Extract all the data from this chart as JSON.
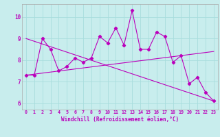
{
  "x": [
    0,
    1,
    2,
    3,
    4,
    5,
    6,
    7,
    8,
    9,
    10,
    11,
    12,
    13,
    14,
    15,
    16,
    17,
    18,
    19,
    20,
    21,
    22,
    23
  ],
  "y_main": [
    7.3,
    7.3,
    9.0,
    8.5,
    7.5,
    7.7,
    8.1,
    7.9,
    8.1,
    9.1,
    8.8,
    9.5,
    8.7,
    10.3,
    8.5,
    8.5,
    9.3,
    9.1,
    7.9,
    8.2,
    6.9,
    7.2,
    6.5,
    6.1
  ],
  "trend1_x": [
    0,
    23
  ],
  "trend1_y": [
    9.0,
    6.1
  ],
  "trend2_x": [
    0,
    23
  ],
  "trend2_y": [
    7.3,
    8.4
  ],
  "line_color": "#bb00bb",
  "bg_color": "#c8eded",
  "grid_color": "#a8dddd",
  "xlabel": "Windchill (Refroidissement éolien,°C)",
  "xlim": [
    -0.5,
    23.5
  ],
  "ylim": [
    5.7,
    10.6
  ],
  "yticks": [
    6,
    7,
    8,
    9,
    10
  ],
  "xticks": [
    0,
    1,
    2,
    3,
    4,
    5,
    6,
    7,
    8,
    9,
    10,
    11,
    12,
    13,
    14,
    15,
    16,
    17,
    18,
    19,
    20,
    21,
    22,
    23
  ]
}
